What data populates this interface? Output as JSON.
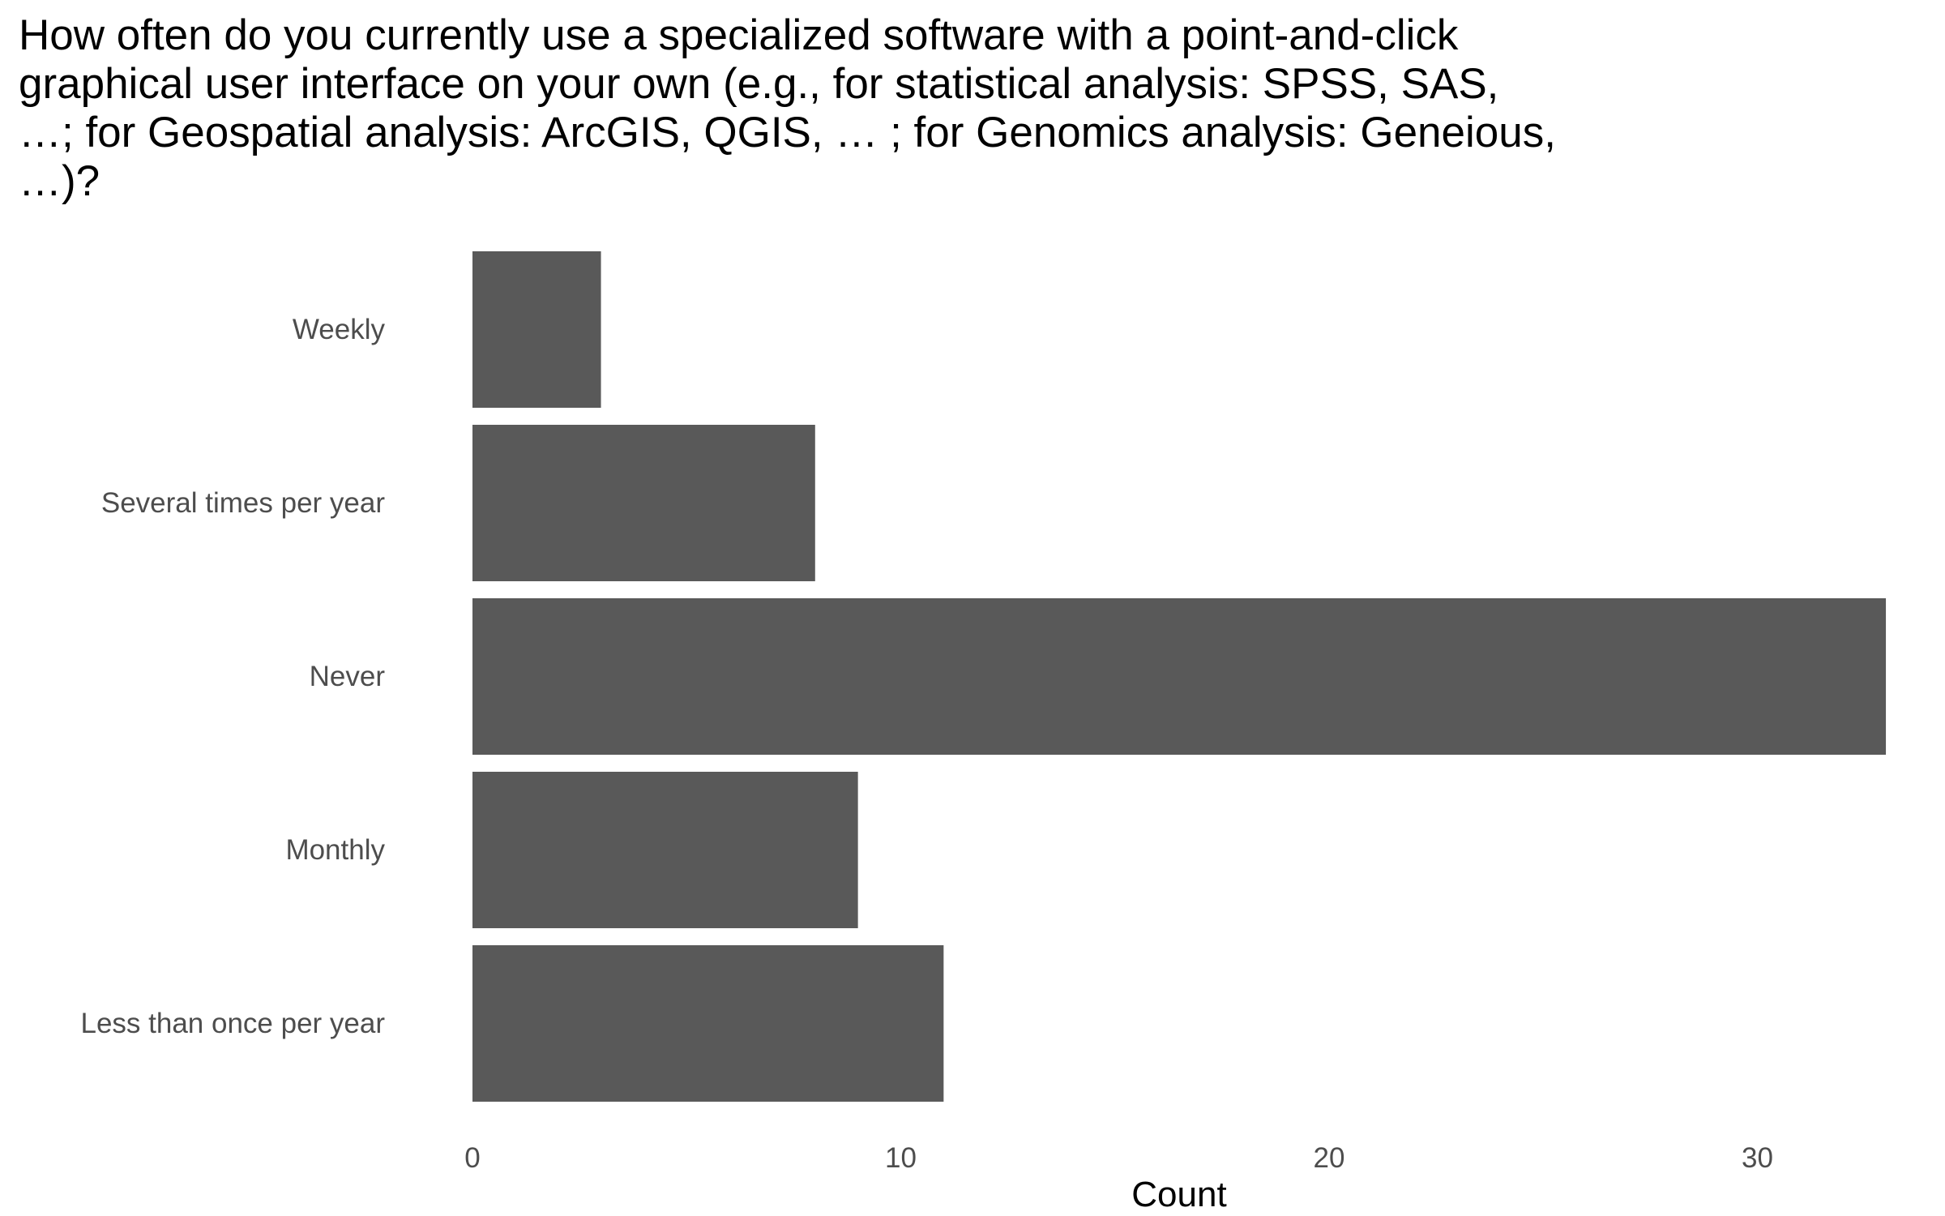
{
  "chart_data": {
    "type": "bar",
    "orientation": "horizontal",
    "title": "How often do you currently use a specialized software with a point-and-click\ngraphical user interface on your own (e.g., for statistical analysis: SPSS, SAS,\n…; for Geospatial analysis: ArcGIS, QGIS, … ; for Genomics analysis: Geneious,\n…)?",
    "categories": [
      "Weekly",
      "Several times per year",
      "Never",
      "Monthly",
      "Less than once per year"
    ],
    "values": [
      3,
      8,
      33,
      9,
      11
    ],
    "xlabel": "Count",
    "ylabel": "",
    "xlim": [
      0,
      33
    ],
    "xticks": [
      0,
      10,
      20,
      30
    ],
    "grid": false,
    "bar_color": "#595959"
  }
}
